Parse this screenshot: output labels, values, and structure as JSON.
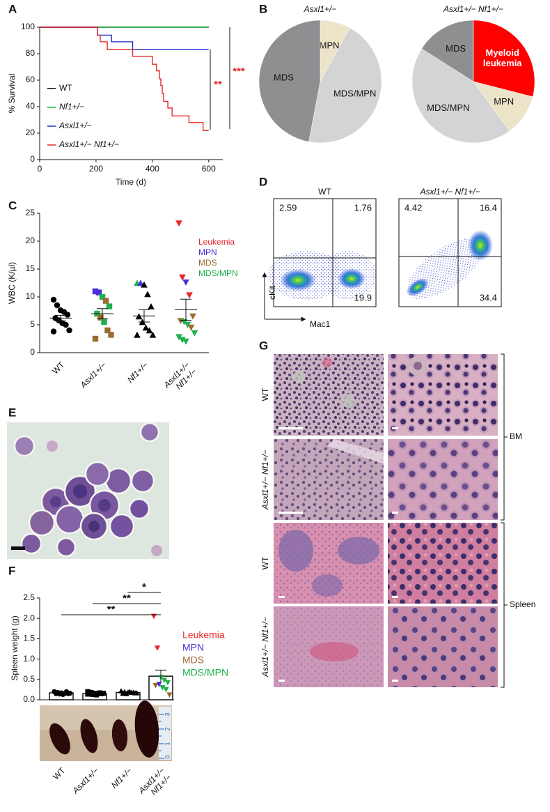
{
  "panel_labels": [
    "A",
    "B",
    "C",
    "D",
    "E",
    "F",
    "G"
  ],
  "chart_data": [
    {
      "type": "line",
      "x_label": "Time (d)",
      "y_label": "% Survival",
      "xlim": [
        0,
        650
      ],
      "xticks": [
        0,
        200,
        400,
        600
      ],
      "ylim": [
        0,
        100
      ],
      "yticks": [
        0,
        20,
        40,
        60,
        80,
        100
      ],
      "series": [
        {
          "name": "WT",
          "color": "#000000",
          "x": [
            0,
            600
          ],
          "values": [
            100,
            100
          ]
        },
        {
          "name": "Nf1+/−",
          "color": "#1db24b",
          "x": [
            0,
            600
          ],
          "values": [
            100,
            100
          ]
        },
        {
          "name": "Asxl1+/−",
          "color": "#1f2bd6",
          "x": [
            0,
            205,
            205,
            255,
            255,
            330,
            330,
            600
          ],
          "values": [
            100,
            100,
            94,
            94,
            89,
            89,
            83,
            83
          ]
        },
        {
          "name": "Asxl1+/− Nf1+/−",
          "color": "#e8262a",
          "x": [
            0,
            205,
            205,
            215,
            215,
            240,
            240,
            330,
            330,
            400,
            400,
            415,
            415,
            425,
            425,
            430,
            430,
            435,
            435,
            440,
            440,
            455,
            455,
            470,
            470,
            530,
            530,
            580,
            580,
            600
          ],
          "values": [
            100,
            100,
            94,
            94,
            89,
            89,
            83,
            83,
            78,
            78,
            72,
            72,
            67,
            67,
            61,
            61,
            56,
            56,
            50,
            50,
            44,
            44,
            39,
            39,
            33,
            33,
            28,
            28,
            22,
            22
          ]
        }
      ],
      "annotations": [
        {
          "text": "**",
          "color": "#e8262a"
        },
        {
          "text": "***",
          "color": "#e8262a"
        }
      ]
    },
    {
      "type": "pie",
      "title": "Asxl1+/−",
      "labels": [
        "MPN",
        "MDS/MPN",
        "MDS"
      ],
      "values": [
        8,
        45,
        47
      ],
      "colors": [
        "#ece4c8",
        "#d4d4d4",
        "#8f8f92"
      ],
      "label_colors": [
        "#111111",
        "#111111",
        "#111111"
      ]
    },
    {
      "type": "pie",
      "title": "Asxl1+/− Nf1+/−",
      "labels": [
        "Myeloid leukemia",
        "MPN",
        "MDS/MPN",
        "MDS"
      ],
      "values": [
        29,
        11,
        44,
        16
      ],
      "colors": [
        "#ff0000",
        "#ece4c8",
        "#d4d4d4",
        "#8f8f92"
      ],
      "label_colors": [
        "#ffffff",
        "#111111",
        "#111111",
        "#111111"
      ]
    },
    {
      "type": "flow",
      "x_label": "Mac1",
      "y_label": "cKit",
      "panels": [
        {
          "title": "WT",
          "values": [
            2.59,
            1.76,
            19.9
          ]
        },
        {
          "title": "Asxl1+/− Nf1+/−",
          "values": [
            4.42,
            16.4,
            34.4
          ]
        }
      ]
    },
    {
      "type": "strip",
      "y_label": "WBC (K/µl)",
      "ylim": [
        0,
        25
      ],
      "yticks": [
        0,
        5,
        10,
        15,
        20,
        25
      ],
      "categories": [
        "WT",
        "Asxl1+/−",
        "Nf1+/−",
        "Asxl1+/− Nf1+/−"
      ],
      "markers": [
        "circle",
        "square",
        "triangle-up",
        "triangle-down"
      ],
      "points": [
        [
          9.5,
          8.5,
          7.6,
          7.3,
          6.8,
          6.2,
          5.8,
          5.3,
          5.0,
          4.0,
          3.8
        ],
        [
          11.0,
          10.8,
          10.0,
          9.3,
          8.3,
          7.0,
          6.3,
          5.5,
          4.0,
          3.2,
          2.5
        ],
        [
          12.5,
          12.5,
          12.2,
          10.5,
          8.3,
          6.5,
          5.5,
          4.5,
          4.0,
          3.2,
          3.2
        ],
        [
          23.2,
          13.5,
          12.6,
          10.3,
          6.5,
          5.7,
          5.5,
          5.0,
          4.5,
          3.5,
          2.8,
          2.3,
          2.0
        ]
      ],
      "point_colors": [
        [
          "#000000",
          "#000000",
          "#000000",
          "#000000",
          "#000000",
          "#000000",
          "#000000",
          "#000000",
          "#000000",
          "#000000",
          "#000000"
        ],
        [
          "#4a2fd6",
          "#4a2fd6",
          "#1fb04c",
          "#9c6b2f",
          "#1fb04c",
          "#1fb04c",
          "#9c6b2f",
          "#1fb04c",
          "#9c6b2f",
          "#9c6b2f",
          "#9c6b2f"
        ],
        [
          "#1fb04c",
          "#4a2fd6",
          "#000000",
          "#000000",
          "#000000",
          "#000000",
          "#000000",
          "#000000",
          "#000000",
          "#000000",
          "#000000"
        ],
        [
          "#e8262a",
          "#e8262a",
          "#4a2fd6",
          "#e8262a",
          "#9c6b2f",
          "#9c6b2f",
          "#1fb04c",
          "#1fb04c",
          "#9c6b2f",
          "#1fb04c",
          "#1fb04c",
          "#1fb04c",
          "#1fb04c"
        ]
      ],
      "means": [
        6.2,
        7.0,
        6.6,
        7.7
      ],
      "errors": [
        0.5,
        0.9,
        1.1,
        1.9
      ],
      "legend": [
        {
          "name": "Leukemia",
          "color": "#e8262a"
        },
        {
          "name": "MPN",
          "color": "#4a2fd6"
        },
        {
          "name": "MDS",
          "color": "#9c6b2f"
        },
        {
          "name": "MDS/MPN",
          "color": "#1fb04c"
        }
      ]
    },
    {
      "type": "bar",
      "y_label": "Spleen weight (g)",
      "ylim": [
        0,
        2.5
      ],
      "yticks": [
        {
          "value": 0,
          "label": "0.0"
        },
        0.5,
        {
          "value": 1,
          "label": "1.0"
        },
        1.5,
        {
          "value": 2,
          "label": "2.0"
        },
        2.5
      ],
      "categories": [
        "WT",
        "Asxl1+/−",
        "Nf1+/−",
        "Asxl1+/− Nf1+/−"
      ],
      "values": [
        0.17,
        0.15,
        0.18,
        0.58
      ],
      "errors": [
        0.02,
        0.02,
        0.02,
        0.15
      ],
      "markers": [
        "circle",
        "square",
        "triangle-up",
        "triangle-down"
      ],
      "points": [
        [
          0.2,
          0.18,
          0.17,
          0.16,
          0.15,
          0.15,
          0.14,
          0.13,
          0.2,
          0.16
        ],
        [
          0.2,
          0.18,
          0.16,
          0.15,
          0.15,
          0.14,
          0.13,
          0.12,
          0.17,
          0.16,
          0.14
        ],
        [
          0.22,
          0.2,
          0.19,
          0.18,
          0.17,
          0.16,
          0.15,
          0.2,
          0.18,
          0.17
        ],
        [
          2.05,
          1.27,
          0.55,
          0.48,
          0.42,
          0.35,
          0.38,
          0.3,
          0.25,
          0.12
        ]
      ],
      "point_colors": [
        [
          "#000000",
          "#000000",
          "#000000",
          "#000000",
          "#000000",
          "#000000",
          "#000000",
          "#000000",
          "#000000",
          "#000000"
        ],
        [
          "#000000",
          "#000000",
          "#000000",
          "#000000",
          "#000000",
          "#000000",
          "#000000",
          "#000000",
          "#000000",
          "#000000",
          "#000000"
        ],
        [
          "#000000",
          "#000000",
          "#000000",
          "#000000",
          "#000000",
          "#000000",
          "#000000",
          "#000000",
          "#000000",
          "#000000"
        ],
        [
          "#e8262a",
          "#e8262a",
          "#1fb04c",
          "#1fb04c",
          "#1fb04c",
          "#9c6b2f",
          "#4a2fd6",
          "#1fb04c",
          "#1fb04c",
          "#9c6b2f"
        ]
      ],
      "significance": [
        "*",
        "**",
        "**"
      ],
      "legend": [
        {
          "name": "Leukemia",
          "color": "#e8262a"
        },
        {
          "name": "MPN",
          "color": "#4a2fd6"
        },
        {
          "name": "MDS",
          "color": "#9c6b2f"
        },
        {
          "name": "MDS/MPN",
          "color": "#1fb04c"
        }
      ]
    }
  ],
  "spleen_photo": {
    "ruler_labels": [
      "3",
      "2",
      "1",
      "0"
    ]
  },
  "histology": {
    "rows": [
      "WT",
      "Asxl1+/− Nf1+/−",
      "WT",
      "Asxl1+/− Nf1+/−"
    ],
    "tissues": [
      "BM",
      "Spleen"
    ]
  }
}
